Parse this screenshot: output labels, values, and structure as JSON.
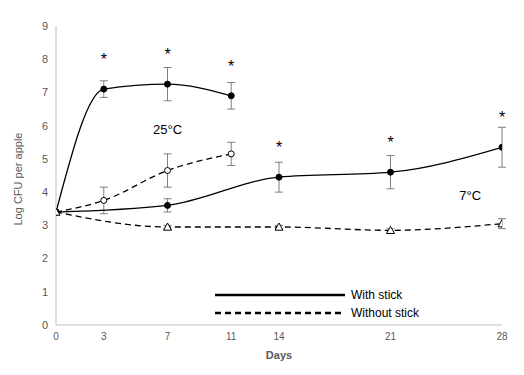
{
  "chart_data": {
    "type": "line",
    "xlabel": "Days",
    "ylabel": "Log CFU per apple",
    "xlim": [
      0,
      28
    ],
    "xticks": [
      0,
      3,
      7,
      11,
      14,
      21,
      28
    ],
    "ylim": [
      0,
      9
    ],
    "yticks": [
      0,
      1,
      2,
      3,
      4,
      5,
      6,
      7,
      8,
      9
    ],
    "grid": false,
    "legend": "lower right",
    "legend_items": [
      {
        "name": "With stick",
        "line_style": "solid"
      },
      {
        "name": "Without stick",
        "line_style": "dashed"
      }
    ],
    "annotations": [
      {
        "text": "25°C",
        "x": 7,
        "y": 5.9
      },
      {
        "text": "7°C",
        "x": 26,
        "y": 3.9
      }
    ],
    "series": [
      {
        "x": [
          0,
          3,
          7,
          11
        ],
        "values": [
          3.4,
          7.1,
          7.25,
          6.9
        ],
        "errors": [
          0,
          0.25,
          0.5,
          0.4
        ],
        "significance": [
          null,
          "*",
          "*",
          "*"
        ],
        "color": "#000000",
        "line_style": "solid",
        "marker": "circle"
      },
      {
        "x": [
          0,
          3,
          7,
          11
        ],
        "values": [
          3.4,
          3.75,
          4.65,
          5.15
        ],
        "errors": [
          0,
          0.4,
          0.5,
          0.35
        ],
        "significance": [
          null,
          null,
          null,
          null
        ],
        "color": "#000000",
        "line_style": "dashed",
        "marker": "open_circle"
      },
      {
        "x": [
          0,
          7,
          14,
          21,
          28
        ],
        "values": [
          3.4,
          3.6,
          4.45,
          4.6,
          5.35
        ],
        "errors": [
          0,
          0.2,
          0.45,
          0.5,
          0.6
        ],
        "significance": [
          null,
          null,
          "*",
          "*",
          "*"
        ],
        "color": "#000000",
        "line_style": "solid",
        "marker": "circle"
      },
      {
        "x": [
          0,
          7,
          14,
          21,
          28
        ],
        "values": [
          3.4,
          2.95,
          2.95,
          2.85,
          3.05
        ],
        "errors": [
          0,
          0.05,
          0.05,
          0.05,
          0.15
        ],
        "significance": [
          null,
          null,
          null,
          null,
          null
        ],
        "color": "#000000",
        "line_style": "dashed",
        "marker": "triangle"
      }
    ]
  }
}
